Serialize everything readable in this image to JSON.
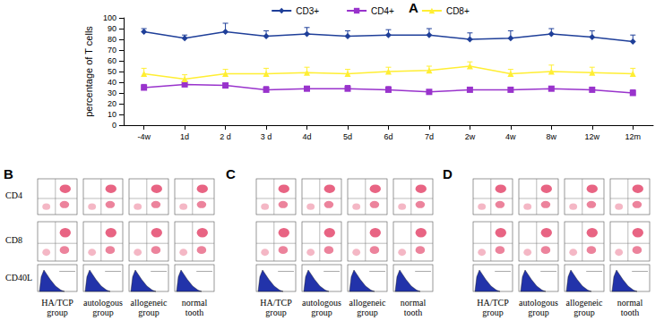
{
  "chart_data": {
    "type": "line",
    "categories": [
      "-4w",
      "1d",
      "2 d",
      "3 d",
      "4d",
      "5d",
      "6d",
      "7d",
      "2w",
      "4w",
      "8w",
      "12w",
      "12m"
    ],
    "y_label": "percentage of T cells",
    "ylim": [
      0,
      100
    ],
    "yticks": [
      0,
      10,
      20,
      30,
      40,
      50,
      60,
      70,
      80,
      90,
      100
    ],
    "grid": false,
    "legend": "top",
    "series": [
      {
        "name": "CD3+",
        "color": "#1f3f99",
        "marker": "diamond",
        "values": [
          87,
          81,
          87,
          83,
          85,
          83,
          84,
          84,
          80,
          81,
          85,
          82,
          78
        ],
        "errors": [
          3,
          3,
          8,
          5,
          6,
          5,
          5,
          6,
          6,
          7,
          5,
          6,
          6
        ]
      },
      {
        "name": "CD4+",
        "color": "#9933cc",
        "marker": "rect",
        "values": [
          35,
          38,
          37,
          33,
          34,
          34,
          33,
          31,
          33,
          33,
          34,
          33,
          30
        ],
        "errors": [
          3,
          3,
          2,
          3,
          2,
          3,
          3,
          2,
          2,
          2,
          2,
          2,
          3
        ]
      },
      {
        "name": "CD8+",
        "color": "#ffee33",
        "marker": "triangle",
        "values": [
          48,
          43,
          48,
          48,
          49,
          48,
          50,
          51,
          55,
          48,
          50,
          49,
          48
        ],
        "errors": [
          5,
          4,
          4,
          5,
          5,
          4,
          4,
          4,
          4,
          4,
          6,
          5,
          5
        ]
      }
    ]
  },
  "panel_A": {
    "label": "A"
  },
  "flow_panels": {
    "labels": [
      "B",
      "C",
      "D"
    ],
    "rows": [
      "CD4",
      "CD8",
      "CD40L"
    ],
    "groups": [
      "HA/TCP group",
      "autologous group",
      "allogeneic group",
      "normal tooth"
    ]
  }
}
